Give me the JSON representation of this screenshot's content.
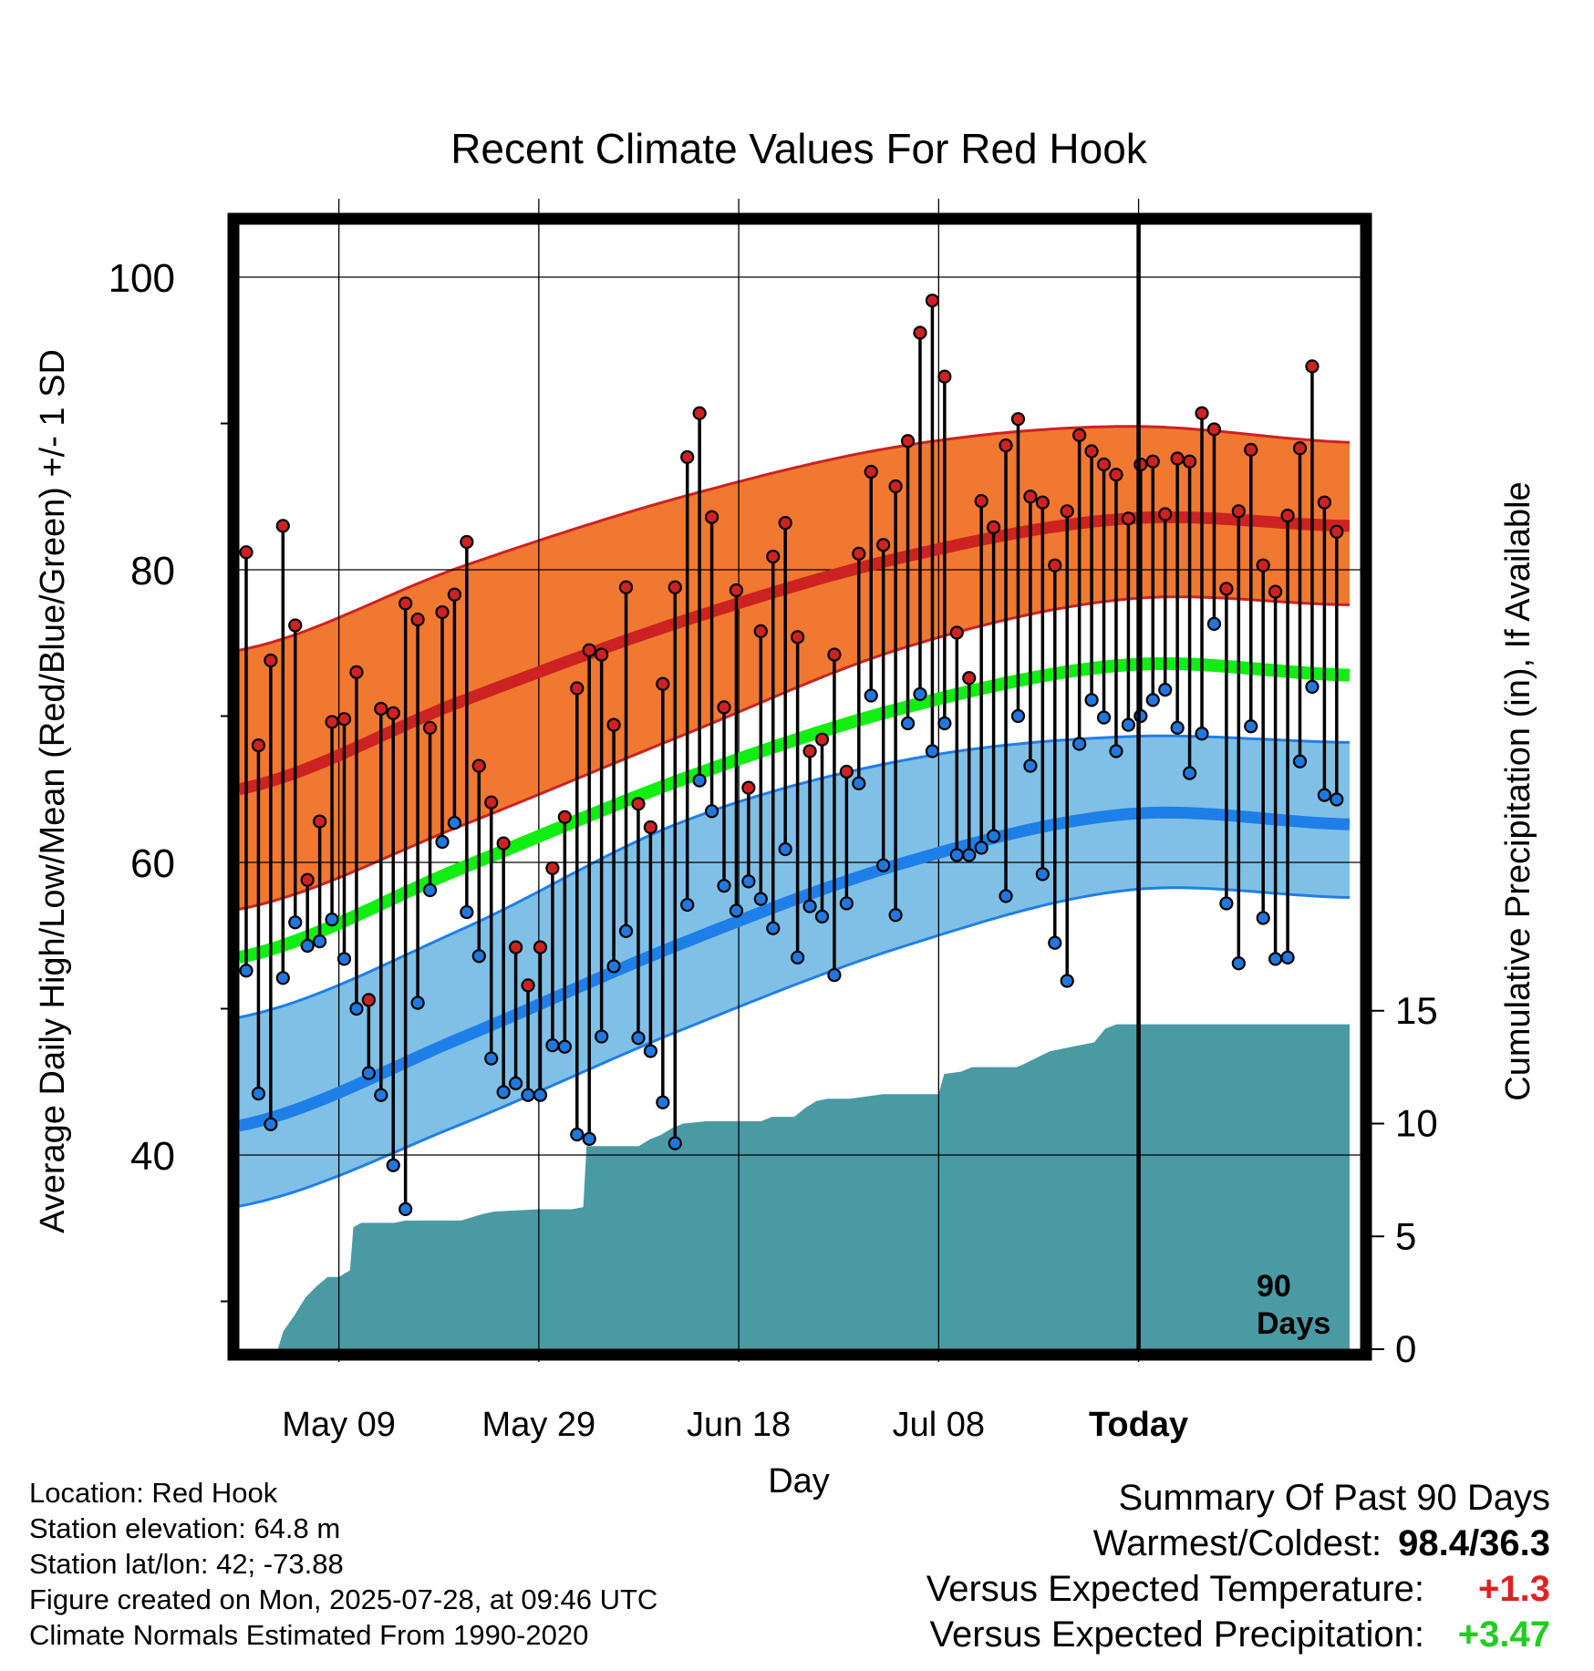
{
  "chart_data": {
    "type": "line",
    "title": "Recent Climate Values For Red Hook",
    "xlabel": "Day",
    "ylabel": "Average Daily High/Low/Mean (Red/Blue/Green) +/- 1 SD",
    "y2label": "Cumulative Precipitation (in), If Available",
    "x_ticks": [
      "May 09",
      "May 29",
      "Jun 18",
      "Jul 08",
      "Today"
    ],
    "y_ticks": [
      40,
      60,
      80,
      100
    ],
    "y2_ticks": [
      0,
      5,
      10,
      15
    ],
    "ylim": [
      27,
      104
    ],
    "y2lim": [
      0,
      15
    ],
    "grid": true,
    "today_marker_label": [
      "90",
      "Days"
    ],
    "series": [
      {
        "name": "Daily High",
        "color": "#cc2222",
        "values": [
          81.2,
          68.0,
          73.8,
          83.0,
          76.2,
          58.8,
          62.8,
          69.6,
          69.8,
          73.0,
          50.6,
          70.5,
          70.2,
          77.7,
          76.6,
          69.2,
          77.1,
          78.3,
          81.9,
          66.6,
          64.1,
          61.3,
          54.2,
          51.6,
          54.2,
          59.6,
          63.1,
          71.9,
          74.5,
          74.2,
          69.4,
          78.8,
          64.0,
          62.4,
          72.2,
          78.8,
          87.7,
          90.7,
          83.6,
          70.6,
          78.6,
          65.1,
          75.8,
          80.9,
          83.2,
          75.4,
          67.6,
          68.4,
          74.2,
          66.2,
          81.1,
          86.7,
          81.7,
          85.7,
          88.8,
          96.2,
          98.4,
          93.2,
          75.7,
          72.6,
          84.7,
          82.9,
          88.5,
          90.3,
          85.0,
          84.6,
          80.3,
          84.0,
          89.2,
          88.1,
          87.2,
          86.5,
          83.5,
          87.2,
          87.4,
          83.8,
          87.6,
          87.4,
          90.7,
          89.6,
          78.7,
          84.0,
          88.2,
          80.3,
          78.5,
          83.7,
          88.3,
          93.9,
          84.6,
          82.6
        ]
      },
      {
        "name": "Daily Low",
        "color": "#2277dd",
        "values": [
          52.6,
          44.2,
          42.1,
          52.1,
          55.9,
          54.3,
          54.6,
          56.1,
          53.4,
          50.0,
          45.6,
          44.1,
          39.3,
          36.3,
          50.4,
          58.1,
          61.4,
          62.7,
          56.6,
          53.6,
          46.6,
          44.3,
          44.9,
          44.1,
          44.1,
          47.5,
          47.4,
          41.4,
          41.1,
          48.1,
          52.9,
          55.3,
          48.0,
          47.1,
          43.6,
          40.8,
          57.1,
          65.6,
          63.5,
          58.4,
          56.7,
          58.7,
          57.5,
          55.5,
          60.9,
          53.5,
          57.0,
          56.3,
          52.3,
          57.2,
          65.4,
          71.4,
          59.8,
          56.4,
          69.5,
          71.5,
          67.6,
          69.5,
          60.5,
          60.5,
          61.0,
          61.8,
          57.7,
          70.0,
          66.6,
          59.2,
          54.5,
          51.9,
          68.1,
          71.1,
          69.9,
          67.6,
          69.4,
          70.0,
          71.1,
          71.8,
          69.2,
          66.1,
          68.8,
          76.3,
          57.2,
          53.1,
          69.3,
          56.2,
          53.4,
          53.5,
          66.9,
          72.0,
          64.6,
          64.3
        ]
      },
      {
        "name": "Normal High",
        "color": "#cc2222",
        "day_offsets": [
          0,
          20,
          40,
          60,
          80,
          100
        ],
        "values": [
          65.0,
          71.0,
          76.5,
          80.9,
          83.5,
          83.0
        ]
      },
      {
        "name": "Normal Low",
        "color": "#1f7fe8",
        "day_offsets": [
          0,
          20,
          40,
          60,
          80,
          100
        ],
        "values": [
          42.0,
          48.0,
          54.5,
          60.0,
          63.3,
          62.6
        ]
      },
      {
        "name": "Normal Mean",
        "color": "#11ee11",
        "day_offsets": [
          0,
          20,
          40,
          60,
          80,
          100
        ],
        "values": [
          53.5,
          59.6,
          65.7,
          70.6,
          73.5,
          72.8
        ]
      }
    ],
    "bands": [
      {
        "name": "High +/- 1 SD",
        "color": "#f07830",
        "day_offsets": [
          0,
          20,
          40,
          60,
          80,
          100
        ],
        "upper": [
          74.5,
          80.2,
          85.0,
          88.5,
          89.8,
          88.7
        ],
        "lower": [
          56.8,
          62.5,
          68.7,
          74.7,
          78.0,
          77.6
        ]
      },
      {
        "name": "Low +/- 1 SD",
        "color": "#80c0e6",
        "day_offsets": [
          0,
          20,
          40,
          60,
          80,
          100
        ],
        "upper": [
          49.4,
          55.4,
          62.8,
          67.0,
          68.6,
          68.2
        ],
        "lower": [
          36.5,
          42.1,
          48.6,
          54.3,
          58.1,
          57.6
        ]
      }
    ],
    "precipitation": {
      "color": "#4a9aa4",
      "day_offsets": [
        3.5,
        4,
        5,
        6,
        7,
        8,
        9,
        10,
        10.3,
        11,
        14,
        15,
        20,
        22,
        23,
        27,
        30,
        31,
        31.3,
        36,
        37,
        38,
        39,
        40,
        42,
        47,
        48,
        50,
        51,
        52,
        53,
        55,
        58,
        62,
        63,
        63.5,
        65,
        66,
        68,
        69,
        70,
        70.5,
        73,
        75,
        76,
        77,
        78,
        79,
        82,
        90.5,
        95,
        100
      ],
      "values": [
        0,
        0.8,
        1.5,
        2.3,
        2.8,
        3.2,
        3.2,
        3.5,
        5.4,
        5.6,
        5.6,
        5.7,
        5.7,
        6.0,
        6.1,
        6.2,
        6.2,
        6.3,
        9.0,
        9.0,
        9.3,
        9.5,
        9.8,
        10.0,
        10.1,
        10.1,
        10.3,
        10.3,
        10.7,
        11.0,
        11.1,
        11.1,
        11.3,
        11.3,
        11.3,
        12.2,
        12.3,
        12.5,
        12.5,
        12.5,
        12.5,
        12.6,
        13.2,
        13.4,
        13.5,
        13.6,
        14.2,
        14.4,
        14.4,
        14.4,
        14.4,
        14.4
      ]
    }
  },
  "info": {
    "location": "Location: Red Hook",
    "elevation": "Station elevation: 64.8 m",
    "latlon": "Station lat/lon: 42; -73.88",
    "created": "Figure created on Mon, 2025-07-28, at 09:46 UTC",
    "normals": "Climate Normals Estimated From 1990-2020"
  },
  "summary": {
    "heading": "Summary Of Past 90 Days",
    "warmest_label": "Warmest/Coldest:",
    "warmest_value": "98.4/36.3",
    "temp_label": "Versus Expected Temperature:",
    "temp_value": "+1.3",
    "temp_color": "#dd2222",
    "precip_label": "Versus Expected Precipitation:",
    "precip_value": "+3.47",
    "precip_color": "#22cc22"
  }
}
